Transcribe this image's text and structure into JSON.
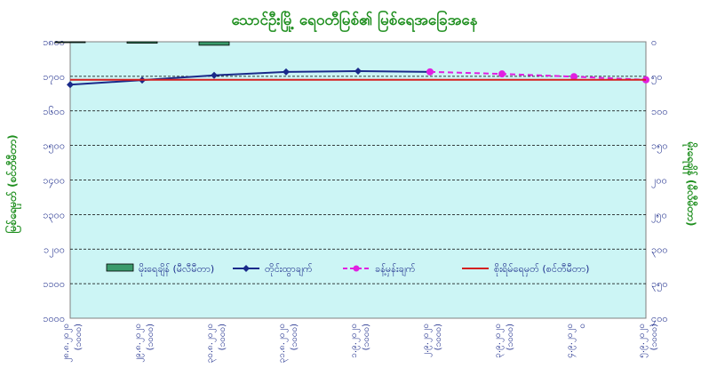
{
  "chart_data": {
    "type": "line",
    "title": "သောင်ဦးမြို့ ရေဝတီမြစ်၏ မြစ်ရေအခြေအနေ",
    "ylabel_left": "မြစ်ရေမှတ် (စင်တီမီတာ)",
    "ylabel_right": "မိုးရေချိန် (မီလီမီတာ)",
    "categories": [
      "၂၈.၈.၂၀၂၀",
      "၂၉.၈.၂၀၂၀",
      "၃၀.၈.၂၀၂၀",
      "၃၁.၈.၂၀၂၀",
      "၁.၉.၂၀၂၀",
      "၂.၉.၂၀၂၀",
      "၃.၉.၂၀၂၀",
      "၄.၉.၂၀၂၀",
      "၅.၉.၂၀၂၀"
    ],
    "categories_sub": [
      "(၁၀၀၀)",
      "(၁၀၀၀)",
      "(၁၀၀၀)",
      "(၁၀၀၀)",
      "(၁၀၀၀)",
      "(၁၀၀၀)",
      "(၁၀၀၀)",
      "၀",
      "(၁၀၀၀)"
    ],
    "ylim_left": [
      1000,
      1800
    ],
    "yticks_left": [
      "၁၈၀၀",
      "၁၇၀၀",
      "၁၆၀၀",
      "၁၅၀၀",
      "၁၄၀၀",
      "၁၃၀၀",
      "၁၂၀၀",
      "၁၁၀၀",
      "၁၀၀၀"
    ],
    "ylim_right": [
      0,
      400
    ],
    "yticks_right": [
      "၀",
      "၅၀",
      "၁၀၀",
      "၁၅၀",
      "၂၀၀",
      "၂၅၀",
      "၃၀၀",
      "၃၅၀",
      "၄၀၀"
    ],
    "series": [
      {
        "name": "မိုးရေချိန် (မီလီမီတာ)",
        "kind": "bar",
        "axis": "right",
        "color": "#3a9a6b",
        "values": [
          1,
          2,
          5,
          null,
          null,
          null,
          null,
          null,
          null
        ]
      },
      {
        "name": "တိုင်းထွာချက်",
        "kind": "line",
        "axis": "left",
        "color": "#1a2a8a",
        "marker": "diamond",
        "values": [
          1676,
          1689,
          1703,
          1713,
          1715,
          1713,
          null,
          null,
          null
        ]
      },
      {
        "name": "ခန့်မှန်းချက်",
        "kind": "line-dashed",
        "axis": "left",
        "color": "#e020e0",
        "marker": "circle",
        "values": [
          null,
          null,
          null,
          null,
          null,
          1713,
          1707,
          1699,
          1690
        ]
      },
      {
        "name": "စိုးရိမ်ရေမှတ် (စင်တီမီတာ)",
        "kind": "line",
        "axis": "left",
        "color": "#d42020",
        "values": [
          1690,
          1690,
          1690,
          1690,
          1690,
          1690,
          1690,
          1690,
          1690
        ]
      }
    ],
    "legend_position": "lower-center",
    "grid": "horizontal dashed",
    "colors": {
      "plot_bg": "#ccf5f5",
      "title": "#1f8f1f",
      "axis_text": "#1a2a8a"
    }
  }
}
